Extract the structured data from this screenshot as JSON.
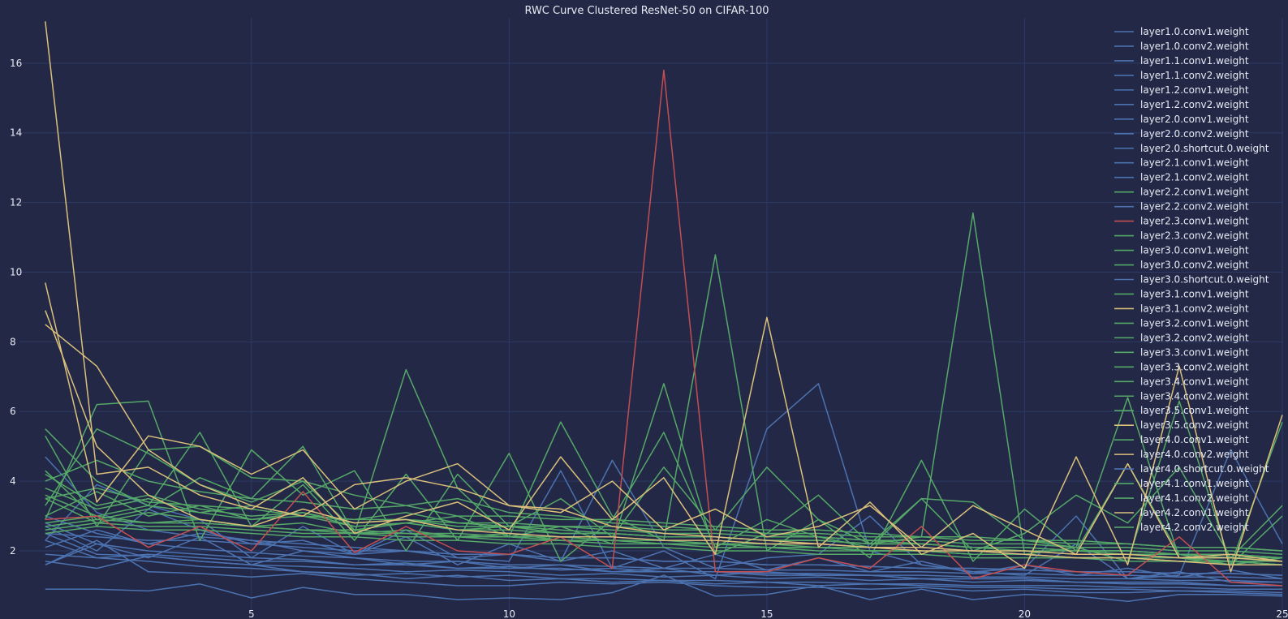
{
  "chart_data": {
    "type": "line",
    "title": "RWC Curve Clustered ResNet-50 on CIFAR-100",
    "xlabel": "",
    "ylabel": "",
    "xlim": [
      0.5,
      25
    ],
    "ylim": [
      0.3,
      17.3
    ],
    "xticks": [
      5,
      10,
      15,
      20,
      25
    ],
    "yticks": [
      2,
      4,
      6,
      8,
      10,
      12,
      14,
      16
    ],
    "grid": true,
    "legend_position": "top-right",
    "cluster_colors": {
      "blue": "#4c72b0",
      "green": "#55a868",
      "red": "#c44e52",
      "yellow": "#dbc07b"
    },
    "x": [
      1,
      2,
      3,
      4,
      5,
      6,
      7,
      8,
      9,
      10,
      11,
      12,
      13,
      14,
      15,
      16,
      17,
      18,
      19,
      20,
      21,
      22,
      23,
      24,
      25
    ],
    "series": [
      {
        "name": "layer1.0.conv1.weight",
        "color": "blue",
        "values": [
          0.9,
          0.9,
          0.85,
          1.05,
          0.65,
          0.95,
          0.75,
          0.75,
          0.6,
          0.65,
          0.6,
          0.8,
          1.3,
          0.7,
          0.75,
          1.0,
          0.6,
          0.9,
          0.6,
          0.75,
          0.7,
          0.55,
          0.75,
          0.75,
          0.7
        ]
      },
      {
        "name": "layer1.0.conv2.weight",
        "color": "blue",
        "values": [
          1.6,
          2.3,
          1.4,
          1.35,
          1.25,
          1.35,
          1.2,
          1.1,
          1.0,
          1.0,
          1.1,
          1.05,
          1.1,
          1.0,
          0.95,
          0.95,
          0.9,
          0.95,
          0.85,
          0.9,
          0.8,
          0.8,
          0.85,
          0.8,
          0.75
        ]
      },
      {
        "name": "layer1.1.conv1.weight",
        "color": "blue",
        "values": [
          2.3,
          1.8,
          1.7,
          1.55,
          1.5,
          1.4,
          1.3,
          1.35,
          1.25,
          1.3,
          1.2,
          1.2,
          1.15,
          1.15,
          1.1,
          1.1,
          1.05,
          1.05,
          1.0,
          1.0,
          1.0,
          0.95,
          0.95,
          0.9,
          0.9
        ]
      },
      {
        "name": "layer1.1.conv2.weight",
        "color": "blue",
        "values": [
          2.5,
          1.9,
          1.85,
          1.7,
          1.6,
          1.55,
          1.5,
          1.4,
          1.45,
          1.4,
          1.3,
          1.35,
          1.25,
          1.3,
          1.2,
          1.25,
          1.15,
          1.2,
          1.1,
          1.15,
          1.1,
          1.05,
          1.05,
          1.0,
          1.0
        ]
      },
      {
        "name": "layer1.2.conv1.weight",
        "color": "blue",
        "values": [
          2.8,
          2.2,
          2.0,
          1.9,
          1.8,
          1.75,
          1.6,
          1.65,
          1.5,
          1.55,
          1.45,
          1.5,
          1.4,
          1.4,
          1.35,
          1.35,
          1.3,
          1.3,
          1.25,
          1.25,
          1.2,
          1.2,
          1.15,
          1.15,
          1.1
        ]
      },
      {
        "name": "layer1.2.conv2.weight",
        "color": "blue",
        "values": [
          3.0,
          2.5,
          2.2,
          2.05,
          1.95,
          1.85,
          1.8,
          1.7,
          1.7,
          1.6,
          1.6,
          1.55,
          1.5,
          1.5,
          1.45,
          1.45,
          1.4,
          1.4,
          1.35,
          1.35,
          1.3,
          1.3,
          1.25,
          1.25,
          1.2
        ]
      },
      {
        "name": "layer2.0.conv1.weight",
        "color": "blue",
        "values": [
          4.7,
          3.1,
          2.6,
          2.4,
          2.3,
          2.2,
          2.1,
          2.0,
          1.9,
          1.9,
          1.8,
          1.8,
          1.7,
          1.7,
          1.6,
          1.6,
          1.55,
          1.5,
          1.5,
          1.45,
          1.4,
          1.4,
          1.35,
          1.35,
          1.3
        ]
      },
      {
        "name": "layer2.0.conv2.weight",
        "color": "blue",
        "values": [
          2.3,
          3.9,
          3.3,
          2.9,
          1.8,
          2.7,
          1.9,
          2.4,
          1.6,
          2.2,
          1.7,
          2.0,
          1.5,
          1.9,
          1.45,
          1.8,
          1.4,
          1.7,
          1.35,
          1.6,
          1.3,
          1.5,
          1.25,
          1.45,
          1.2
        ]
      },
      {
        "name": "layer2.0.shortcut.0.weight",
        "color": "blue",
        "values": [
          1.7,
          1.5,
          1.85,
          1.7,
          1.6,
          1.4,
          1.35,
          1.2,
          1.3,
          1.15,
          1.2,
          1.1,
          1.15,
          1.05,
          1.1,
          1.0,
          1.05,
          1.0,
          0.95,
          0.95,
          0.9,
          0.9,
          0.85,
          0.85,
          0.8
        ]
      },
      {
        "name": "layer2.1.conv1.weight",
        "color": "blue",
        "values": [
          2.7,
          2.0,
          3.2,
          2.6,
          2.2,
          2.3,
          1.9,
          2.0,
          1.8,
          1.7,
          4.3,
          1.5,
          2.0,
          1.2,
          5.5,
          6.8,
          2.0,
          1.6,
          1.4,
          1.3,
          2.2,
          1.2,
          1.4,
          1.1,
          1.1
        ]
      },
      {
        "name": "layer2.1.conv2.weight",
        "color": "blue",
        "values": [
          2.1,
          2.6,
          2.2,
          2.5,
          2.3,
          2.0,
          1.9,
          2.6,
          1.8,
          1.9,
          1.7,
          4.6,
          2.1,
          1.5,
          1.8,
          1.9,
          3.0,
          1.6,
          1.4,
          1.5,
          3.0,
          1.2,
          1.3,
          4.9,
          2.2
        ]
      },
      {
        "name": "layer2.2.conv1.weight",
        "color": "green",
        "values": [
          3.0,
          3.7,
          3.0,
          3.3,
          2.9,
          3.1,
          2.7,
          2.8,
          2.6,
          2.7,
          2.5,
          2.5,
          2.4,
          2.4,
          2.3,
          2.3,
          2.2,
          2.2,
          2.1,
          2.1,
          2.0,
          2.0,
          1.9,
          1.9,
          1.8
        ]
      },
      {
        "name": "layer2.2.conv2.weight",
        "color": "blue",
        "values": [
          2.5,
          2.4,
          2.3,
          2.3,
          2.2,
          2.1,
          2.0,
          2.0,
          1.9,
          1.9,
          1.8,
          1.8,
          1.7,
          1.7,
          1.6,
          1.6,
          1.55,
          1.5,
          1.5,
          1.45,
          1.4,
          1.4,
          1.35,
          1.35,
          1.3
        ]
      },
      {
        "name": "layer2.3.conv1.weight",
        "color": "red",
        "values": [
          2.9,
          3.0,
          2.1,
          2.7,
          2.0,
          3.7,
          1.95,
          2.7,
          2.0,
          1.9,
          2.4,
          1.5,
          15.8,
          1.4,
          1.4,
          1.8,
          1.5,
          2.7,
          1.2,
          1.6,
          1.4,
          1.3,
          2.4,
          1.1,
          1.0
        ]
      },
      {
        "name": "layer2.3.conv2.weight",
        "color": "green",
        "values": [
          3.5,
          2.8,
          3.1,
          2.9,
          2.7,
          2.8,
          2.5,
          2.6,
          2.4,
          2.5,
          2.3,
          2.3,
          2.2,
          2.2,
          2.1,
          2.1,
          2.0,
          2.0,
          1.9,
          1.9,
          1.8,
          1.8,
          1.7,
          1.7,
          1.6
        ]
      },
      {
        "name": "layer3.0.conv1.weight",
        "color": "green",
        "values": [
          4.2,
          3.3,
          3.6,
          3.2,
          3.0,
          3.1,
          2.8,
          2.9,
          2.7,
          2.7,
          2.6,
          2.5,
          2.4,
          2.4,
          2.3,
          2.3,
          2.2,
          2.2,
          2.1,
          2.1,
          2.0,
          2.0,
          1.9,
          1.9,
          1.8
        ]
      },
      {
        "name": "layer3.0.conv2.weight",
        "color": "green",
        "values": [
          5.3,
          2.7,
          4.9,
          5.0,
          4.1,
          4.0,
          3.6,
          3.3,
          3.5,
          3.1,
          3.0,
          2.8,
          2.7,
          2.6,
          2.5,
          2.4,
          2.3,
          2.2,
          2.1,
          2.0,
          2.0,
          1.9,
          1.8,
          1.8,
          1.7
        ]
      },
      {
        "name": "layer3.0.shortcut.0.weight",
        "color": "blue",
        "values": [
          1.6,
          2.2,
          1.8,
          2.4,
          1.6,
          2.0,
          1.8,
          1.6,
          1.7,
          1.5,
          1.6,
          1.4,
          1.5,
          1.3,
          1.4,
          1.3,
          1.3,
          1.2,
          1.2,
          1.2,
          1.1,
          1.1,
          1.1,
          1.0,
          1.0
        ]
      },
      {
        "name": "layer3.1.conv1.weight",
        "color": "green",
        "values": [
          3.8,
          3.2,
          3.5,
          3.1,
          3.3,
          3.0,
          2.9,
          3.1,
          2.8,
          2.8,
          2.7,
          2.7,
          2.6,
          2.6,
          2.5,
          2.5,
          2.4,
          2.4,
          2.3,
          2.3,
          2.2,
          2.2,
          2.1,
          2.1,
          2.0
        ]
      },
      {
        "name": "layer3.1.conv2.weight",
        "color": "yellow",
        "values": [
          17.2,
          4.2,
          4.4,
          3.6,
          3.2,
          4.1,
          2.5,
          3.0,
          3.4,
          2.6,
          4.7,
          2.9,
          4.1,
          1.9,
          8.7,
          2.1,
          3.4,
          1.9,
          2.5,
          1.5,
          4.7,
          1.6,
          7.3,
          1.4,
          5.9
        ]
      },
      {
        "name": "layer3.2.conv1.weight",
        "color": "green",
        "values": [
          4.0,
          4.6,
          4.0,
          3.7,
          3.5,
          3.4,
          3.2,
          3.3,
          3.0,
          3.0,
          2.9,
          2.9,
          2.8,
          2.7,
          2.6,
          2.6,
          2.5,
          2.4,
          2.4,
          2.3,
          2.3,
          2.2,
          2.1,
          2.1,
          2.0
        ]
      },
      {
        "name": "layer3.2.conv2.weight",
        "color": "green",
        "values": [
          3.3,
          5.5,
          4.8,
          3.9,
          3.4,
          4.0,
          2.6,
          2.8,
          3.0,
          2.4,
          2.7,
          2.2,
          6.8,
          1.9,
          2.5,
          3.6,
          2.2,
          2.4,
          11.7,
          1.9,
          2.1,
          6.4,
          1.8,
          1.6,
          3.0
        ]
      },
      {
        "name": "layer3.3.conv1.weight",
        "color": "green",
        "values": [
          4.3,
          2.9,
          3.2,
          4.1,
          3.5,
          5.0,
          2.5,
          7.2,
          3.8,
          2.4,
          5.7,
          3.0,
          2.3,
          10.5,
          2.0,
          2.9,
          1.8,
          4.6,
          1.7,
          3.2,
          2.0,
          4.5,
          1.9,
          1.6,
          5.7
        ]
      },
      {
        "name": "layer3.3.conv2.weight",
        "color": "green",
        "values": [
          2.9,
          6.2,
          6.3,
          2.3,
          4.9,
          3.6,
          4.3,
          2.0,
          4.2,
          2.7,
          3.5,
          2.4,
          4.4,
          2.6,
          4.4,
          2.9,
          2.2,
          3.5,
          2.0,
          2.5,
          3.6,
          2.8,
          4.4,
          1.8,
          3.3
        ]
      },
      {
        "name": "layer3.4.conv1.weight",
        "color": "green",
        "values": [
          5.5,
          4.0,
          3.3,
          5.4,
          2.7,
          3.9,
          2.3,
          4.2,
          2.3,
          4.8,
          1.7,
          2.9,
          5.4,
          2.1,
          2.9,
          2.4,
          2.1,
          3.5,
          3.4,
          2.3,
          2.1,
          1.7,
          6.3,
          1.6,
          1.8
        ]
      },
      {
        "name": "layer3.4.conv2.weight",
        "color": "green",
        "values": [
          3.5,
          3.8,
          3.4,
          3.3,
          3.2,
          3.0,
          2.9,
          2.9,
          2.8,
          2.7,
          2.7,
          2.6,
          2.5,
          2.5,
          2.4,
          2.4,
          2.3,
          2.3,
          2.2,
          2.2,
          2.1,
          2.1,
          2.0,
          2.0,
          1.9
        ]
      },
      {
        "name": "layer3.5.conv1.weight",
        "color": "green",
        "values": [
          3.6,
          3.0,
          3.3,
          3.1,
          2.9,
          3.0,
          2.7,
          2.8,
          2.6,
          2.6,
          2.5,
          2.5,
          2.4,
          2.4,
          2.3,
          2.3,
          2.2,
          2.2,
          2.1,
          2.1,
          2.0,
          2.0,
          1.9,
          1.9,
          1.8
        ]
      },
      {
        "name": "layer3.5.conv2.weight",
        "color": "yellow",
        "values": [
          9.7,
          3.4,
          5.3,
          5.0,
          4.2,
          4.9,
          3.2,
          4.0,
          4.5,
          3.3,
          3.1,
          4.0,
          2.6,
          3.2,
          2.4,
          2.7,
          3.3,
          2.1,
          3.3,
          2.6,
          1.9,
          4.5,
          1.8,
          1.9,
          1.7
        ]
      },
      {
        "name": "layer4.0.conv1.weight",
        "color": "green",
        "values": [
          2.8,
          3.0,
          2.8,
          2.9,
          2.7,
          2.6,
          2.5,
          2.5,
          2.4,
          2.4,
          2.3,
          2.3,
          2.2,
          2.2,
          2.1,
          2.1,
          2.0,
          2.0,
          1.9,
          1.9,
          1.8,
          1.8,
          1.7,
          1.7,
          1.6
        ]
      },
      {
        "name": "layer4.0.conv2.weight",
        "color": "yellow",
        "values": [
          8.9,
          5.0,
          3.6,
          2.9,
          2.7,
          3.2,
          2.8,
          2.9,
          2.6,
          2.5,
          2.4,
          2.4,
          2.3,
          2.3,
          2.2,
          2.2,
          2.1,
          2.1,
          2.0,
          2.0,
          1.9,
          1.9,
          1.8,
          1.8,
          1.7
        ]
      },
      {
        "name": "layer4.0.shortcut.0.weight",
        "color": "blue",
        "values": [
          1.9,
          1.8,
          1.9,
          1.8,
          1.7,
          1.7,
          1.6,
          1.6,
          1.5,
          1.5,
          1.5,
          1.4,
          1.4,
          1.4,
          1.3,
          1.3,
          1.3,
          1.2,
          1.2,
          1.2,
          1.1,
          1.1,
          1.1,
          1.0,
          1.0
        ]
      },
      {
        "name": "layer4.1.conv1.weight",
        "color": "green",
        "values": [
          2.5,
          2.7,
          2.6,
          2.6,
          2.5,
          2.4,
          2.4,
          2.3,
          2.3,
          2.2,
          2.2,
          2.1,
          2.1,
          2.0,
          2.0,
          1.9,
          1.9,
          1.9,
          1.8,
          1.8,
          1.8,
          1.7,
          1.7,
          1.7,
          1.6
        ]
      },
      {
        "name": "layer4.1.conv2.weight",
        "color": "green",
        "values": [
          2.6,
          2.8,
          2.7,
          2.7,
          2.6,
          2.5,
          2.5,
          2.4,
          2.4,
          2.3,
          2.3,
          2.2,
          2.2,
          2.1,
          2.1,
          2.0,
          2.0,
          2.0,
          1.9,
          1.9,
          1.8,
          1.8,
          1.8,
          1.7,
          1.7
        ]
      },
      {
        "name": "layer4.2.conv1.weight",
        "color": "yellow",
        "values": [
          8.5,
          7.3,
          4.9,
          3.9,
          3.3,
          3.0,
          3.9,
          4.1,
          3.8,
          3.3,
          3.2,
          2.7,
          2.5,
          2.4,
          2.3,
          2.2,
          2.1,
          2.0,
          2.0,
          1.9,
          1.8,
          1.8,
          1.7,
          1.6,
          1.6
        ]
      },
      {
        "name": "layer4.2.conv2.weight",
        "color": "green",
        "values": [
          2.7,
          2.9,
          2.8,
          2.8,
          2.7,
          2.6,
          2.6,
          2.5,
          2.5,
          2.4,
          2.4,
          2.3,
          2.3,
          2.2,
          2.2,
          2.1,
          2.1,
          2.1,
          2.0,
          2.0,
          1.9,
          1.9,
          1.9,
          1.8,
          1.8
        ]
      }
    ]
  }
}
